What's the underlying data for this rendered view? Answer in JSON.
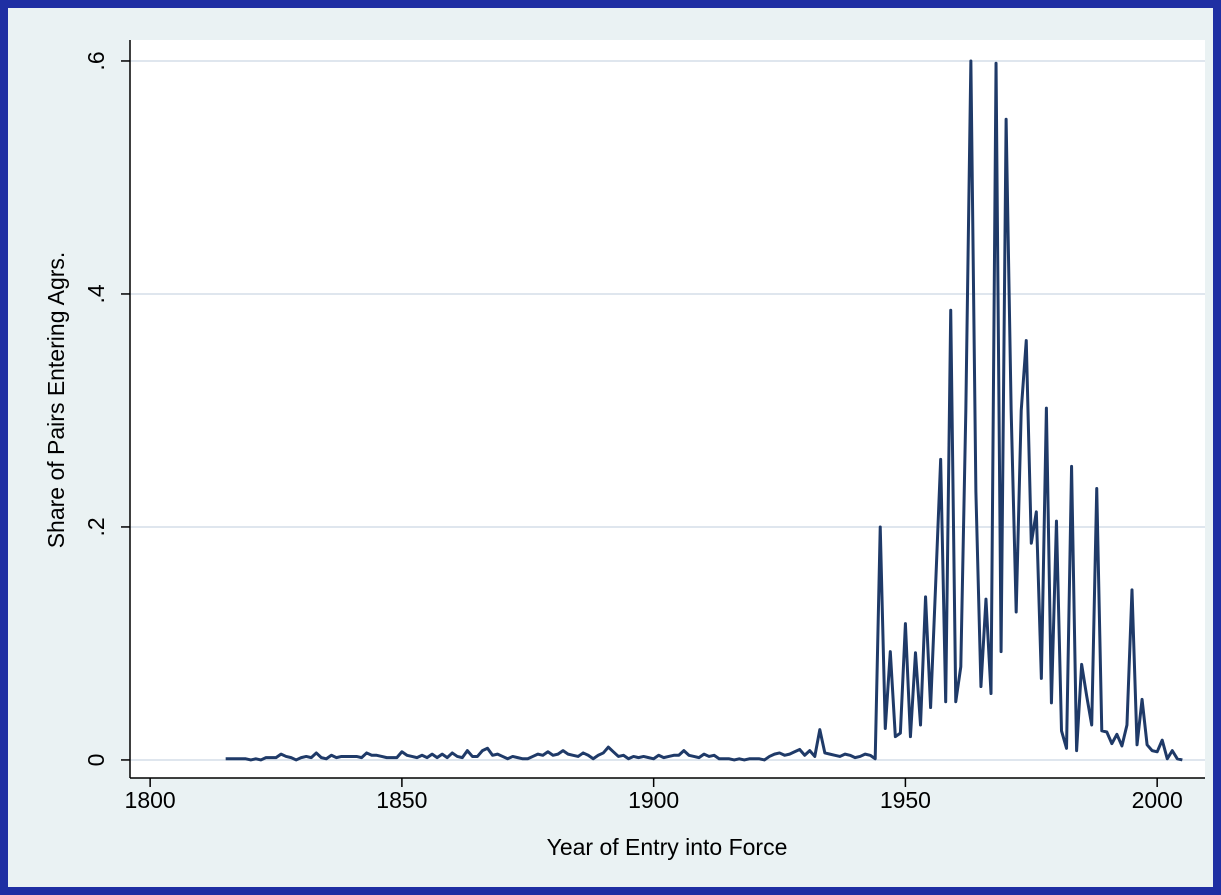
{
  "chart_data": {
    "type": "line",
    "y_label": "Share of Pairs Entering Agrs.",
    "x_label": "Year of Entry into Force",
    "x": [
      1815,
      1816,
      1817,
      1818,
      1819,
      1820,
      1821,
      1822,
      1823,
      1824,
      1825,
      1826,
      1827,
      1828,
      1829,
      1830,
      1831,
      1832,
      1833,
      1834,
      1835,
      1836,
      1837,
      1838,
      1839,
      1840,
      1841,
      1842,
      1843,
      1844,
      1845,
      1846,
      1847,
      1848,
      1849,
      1850,
      1851,
      1852,
      1853,
      1854,
      1855,
      1856,
      1857,
      1858,
      1859,
      1860,
      1861,
      1862,
      1863,
      1864,
      1865,
      1866,
      1867,
      1868,
      1869,
      1870,
      1871,
      1872,
      1873,
      1874,
      1875,
      1876,
      1877,
      1878,
      1879,
      1880,
      1881,
      1882,
      1883,
      1884,
      1885,
      1886,
      1887,
      1888,
      1889,
      1890,
      1891,
      1892,
      1893,
      1894,
      1895,
      1896,
      1897,
      1898,
      1899,
      1900,
      1901,
      1902,
      1903,
      1904,
      1905,
      1906,
      1907,
      1908,
      1909,
      1910,
      1911,
      1912,
      1913,
      1914,
      1915,
      1916,
      1917,
      1918,
      1919,
      1920,
      1921,
      1922,
      1923,
      1924,
      1925,
      1926,
      1927,
      1928,
      1929,
      1930,
      1931,
      1932,
      1933,
      1934,
      1935,
      1936,
      1937,
      1938,
      1939,
      1940,
      1941,
      1942,
      1943,
      1944,
      1945,
      1946,
      1947,
      1948,
      1949,
      1950,
      1951,
      1952,
      1953,
      1954,
      1955,
      1956,
      1957,
      1958,
      1959,
      1960,
      1961,
      1962,
      1963,
      1964,
      1965,
      1966,
      1967,
      1968,
      1969,
      1970,
      1971,
      1972,
      1973,
      1974,
      1975,
      1976,
      1977,
      1978,
      1979,
      1980,
      1981,
      1982,
      1983,
      1984,
      1985,
      1986,
      1987,
      1988,
      1989,
      1990,
      1991,
      1992,
      1993,
      1994,
      1995,
      1996,
      1997,
      1998,
      1999,
      2000,
      2001,
      2002,
      2003,
      2004,
      2005
    ],
    "values": [
      0.001,
      0.001,
      0.001,
      0.001,
      0.001,
      0,
      0.001,
      0,
      0.002,
      0.002,
      0.002,
      0.005,
      0.003,
      0.002,
      0,
      0.002,
      0.003,
      0.002,
      0.006,
      0.002,
      0.001,
      0.004,
      0.002,
      0.003,
      0.003,
      0.003,
      0.003,
      0.002,
      0.006,
      0.004,
      0.004,
      0.003,
      0.002,
      0.002,
      0.002,
      0.007,
      0.004,
      0.003,
      0.002,
      0.004,
      0.002,
      0.005,
      0.002,
      0.005,
      0.002,
      0.006,
      0.003,
      0.002,
      0.008,
      0.003,
      0.003,
      0.008,
      0.01,
      0.004,
      0.005,
      0.003,
      0.001,
      0.003,
      0.002,
      0.001,
      0.001,
      0.003,
      0.005,
      0.004,
      0.007,
      0.004,
      0.005,
      0.008,
      0.005,
      0.004,
      0.003,
      0.006,
      0.004,
      0.001,
      0.004,
      0.006,
      0.011,
      0.007,
      0.003,
      0.004,
      0.001,
      0.003,
      0.002,
      0.003,
      0.002,
      0.001,
      0.004,
      0.002,
      0.003,
      0.004,
      0.004,
      0.008,
      0.004,
      0.003,
      0.002,
      0.005,
      0.003,
      0.004,
      0.001,
      0.001,
      0.001,
      0,
      0.001,
      0,
      0.001,
      0.001,
      0.001,
      0,
      0.003,
      0.005,
      0.006,
      0.004,
      0.005,
      0.007,
      0.009,
      0.004,
      0.008,
      0.003,
      0.026,
      0.006,
      0.005,
      0.004,
      0.003,
      0.005,
      0.004,
      0.002,
      0.003,
      0.005,
      0.004,
      0.001,
      0.2,
      0.027,
      0.093,
      0.02,
      0.023,
      0.117,
      0.02,
      0.092,
      0.03,
      0.14,
      0.045,
      0.15,
      0.258,
      0.05,
      0.386,
      0.05,
      0.08,
      0.3,
      0.6,
      0.23,
      0.063,
      0.138,
      0.057,
      0.598,
      0.093,
      0.55,
      0.3,
      0.127,
      0.3,
      0.36,
      0.186,
      0.213,
      0.07,
      0.302,
      0.049,
      0.205,
      0.025,
      0.01,
      0.252,
      0.008,
      0.082,
      0.055,
      0.03,
      0.233,
      0.025,
      0.024,
      0.014,
      0.022,
      0.012,
      0.03,
      0.146,
      0.013,
      0.052,
      0.013,
      0.008,
      0.007,
      0.017,
      0.001,
      0.008,
      0.001,
      0
    ],
    "color": "#1f3a68",
    "xlim": [
      1796,
      2009.5
    ],
    "xticks": [
      1800,
      1850,
      1900,
      1950,
      2000
    ],
    "ylim": [
      -0.0155,
      0.618
    ],
    "yticks": [
      0,
      {
        "value": 0.2,
        "label": ".2"
      },
      {
        "value": 0.4,
        "label": ".4"
      },
      {
        "value": 0.6,
        "label": ".6"
      }
    ],
    "grid": true
  }
}
